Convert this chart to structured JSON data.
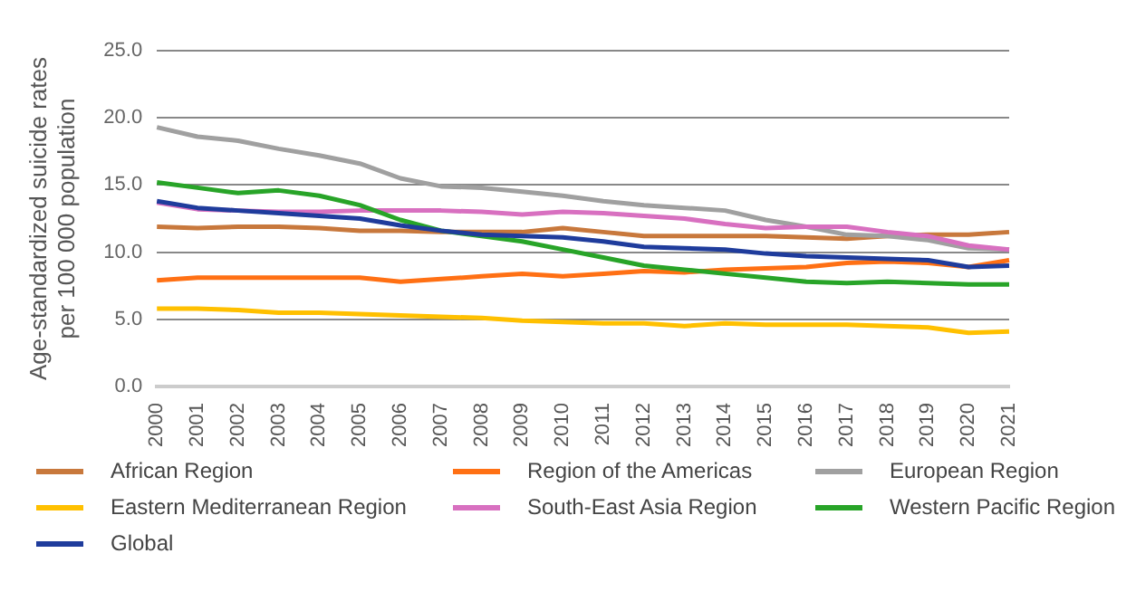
{
  "chart_data": {
    "type": "line",
    "ylabel": "Age-standardized suicide rates\nper 100 000 population",
    "categories": [
      "2000",
      "2001",
      "2002",
      "2003",
      "2004",
      "2005",
      "2006",
      "2007",
      "2008",
      "2009",
      "2010",
      "2011",
      "2012",
      "2013",
      "2014",
      "2015",
      "2016",
      "2017",
      "2018",
      "2019",
      "2020",
      "2021"
    ],
    "ylim": [
      0,
      25
    ],
    "yticks": [
      {
        "value": 0,
        "label": "0.0"
      },
      {
        "value": 5,
        "label": "5.0"
      },
      {
        "value": 10,
        "label": "10.0"
      },
      {
        "value": 15,
        "label": "15.0"
      },
      {
        "value": 20,
        "label": "20.0"
      },
      {
        "value": 25,
        "label": "25.0"
      }
    ],
    "grid": "y",
    "legend": "bottom",
    "marker": "none",
    "line_style": "solid",
    "series": [
      {
        "name": "African Region",
        "color": "#c8783c",
        "values": [
          11.9,
          11.8,
          11.9,
          11.9,
          11.8,
          11.6,
          11.6,
          11.5,
          11.5,
          11.5,
          11.8,
          11.5,
          11.2,
          11.2,
          11.2,
          11.2,
          11.1,
          11.0,
          11.2,
          11.3,
          11.3,
          11.5
        ]
      },
      {
        "name": "Region of the Americas",
        "color": "#ff7014",
        "values": [
          7.9,
          8.1,
          8.1,
          8.1,
          8.1,
          8.1,
          7.8,
          8.0,
          8.2,
          8.4,
          8.2,
          8.4,
          8.6,
          8.5,
          8.7,
          8.8,
          8.9,
          9.2,
          9.3,
          9.2,
          8.9,
          9.4
        ]
      },
      {
        "name": "European Region",
        "color": "#a0a0a0",
        "values": [
          19.3,
          18.6,
          18.3,
          17.7,
          17.2,
          16.6,
          15.5,
          14.9,
          14.8,
          14.5,
          14.2,
          13.8,
          13.5,
          13.3,
          13.1,
          12.4,
          11.9,
          11.3,
          11.2,
          10.9,
          10.3,
          10.2
        ]
      },
      {
        "name": "Eastern Mediterranean Region",
        "color": "#ffc000",
        "values": [
          5.8,
          5.8,
          5.7,
          5.5,
          5.5,
          5.4,
          5.3,
          5.2,
          5.1,
          4.9,
          4.8,
          4.7,
          4.7,
          4.5,
          4.7,
          4.6,
          4.6,
          4.6,
          4.5,
          4.4,
          4.0,
          4.1
        ]
      },
      {
        "name": "South-East Asia Region",
        "color": "#d870c0",
        "values": [
          13.7,
          13.2,
          13.1,
          13.0,
          13.0,
          13.1,
          13.1,
          13.1,
          13.0,
          12.8,
          13.0,
          12.9,
          12.7,
          12.5,
          12.1,
          11.8,
          11.9,
          11.9,
          11.5,
          11.2,
          10.5,
          10.2
        ]
      },
      {
        "name": "Western Pacific Region",
        "color": "#28a428",
        "values": [
          15.2,
          14.8,
          14.4,
          14.6,
          14.2,
          13.5,
          12.4,
          11.6,
          11.2,
          10.8,
          10.2,
          9.6,
          9.0,
          8.7,
          8.4,
          8.1,
          7.8,
          7.7,
          7.8,
          7.7,
          7.6,
          7.6
        ]
      },
      {
        "name": "Global",
        "color": "#1f3c9c",
        "values": [
          13.8,
          13.3,
          13.1,
          12.9,
          12.7,
          12.5,
          12.0,
          11.6,
          11.3,
          11.2,
          11.1,
          10.8,
          10.4,
          10.3,
          10.2,
          9.9,
          9.7,
          9.6,
          9.5,
          9.4,
          8.9,
          9.0
        ]
      }
    ]
  }
}
